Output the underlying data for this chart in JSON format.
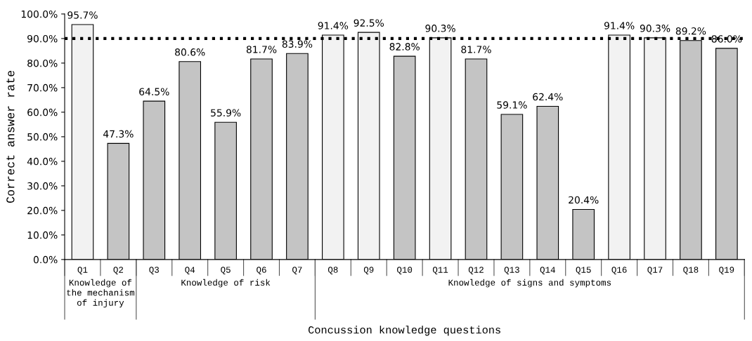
{
  "chart_data": {
    "type": "bar",
    "xlabel": "Concussion knowledge questions",
    "ylabel": "Correct answer rate",
    "categories": [
      "Q1",
      "Q2",
      "Q3",
      "Q4",
      "Q5",
      "Q6",
      "Q7",
      "Q8",
      "Q9",
      "Q10",
      "Q11",
      "Q12",
      "Q13",
      "Q14",
      "Q15",
      "Q16",
      "Q17",
      "Q18",
      "Q19"
    ],
    "values": [
      95.7,
      47.3,
      64.5,
      80.6,
      55.9,
      81.7,
      83.9,
      91.4,
      92.5,
      82.8,
      90.3,
      81.7,
      59.1,
      62.4,
      20.4,
      91.4,
      90.3,
      89.2,
      86.0
    ],
    "value_labels": [
      "95.7%",
      "47.3%",
      "64.5%",
      "80.6%",
      "55.9%",
      "81.7%",
      "83.9%",
      "91.4%",
      "92.5%",
      "82.8%",
      "90.3%",
      "81.7%",
      "59.1%",
      "62.4%",
      "20.4%",
      "91.4%",
      "90.3%",
      "89.2%",
      "86.0%"
    ],
    "colors": [
      "#f2f2f2",
      "#c4c4c4",
      "#c4c4c4",
      "#c4c4c4",
      "#c4c4c4",
      "#c4c4c4",
      "#c4c4c4",
      "#f2f2f2",
      "#f2f2f2",
      "#c4c4c4",
      "#f2f2f2",
      "#c4c4c4",
      "#c4c4c4",
      "#c4c4c4",
      "#c4c4c4",
      "#f2f2f2",
      "#f2f2f2",
      "#c4c4c4",
      "#c4c4c4"
    ],
    "ylim": [
      0,
      100
    ],
    "yticks": [
      {
        "value": 0,
        "label": "0.0%"
      },
      {
        "value": 10,
        "label": "10.0%"
      },
      {
        "value": 20,
        "label": "20.0%"
      },
      {
        "value": 30,
        "label": "30.0%"
      },
      {
        "value": 40,
        "label": "40.0%"
      },
      {
        "value": 50,
        "label": "50.0%"
      },
      {
        "value": 60,
        "label": "60.0%"
      },
      {
        "value": 70,
        "label": "70.0%"
      },
      {
        "value": 80,
        "label": "80.0%"
      },
      {
        "value": 90,
        "label": "90.0%"
      },
      {
        "value": 100,
        "label": "100.0%"
      }
    ],
    "ref_lines": [
      {
        "axis": "y",
        "value": 90,
        "color": "#000000",
        "line_style": "dotted"
      }
    ],
    "annotations": [
      "Knowledge of\nthe mechanism\nof injury",
      "Knowledge of risk",
      "Knowledge of signs and symptoms"
    ],
    "grid": false
  }
}
